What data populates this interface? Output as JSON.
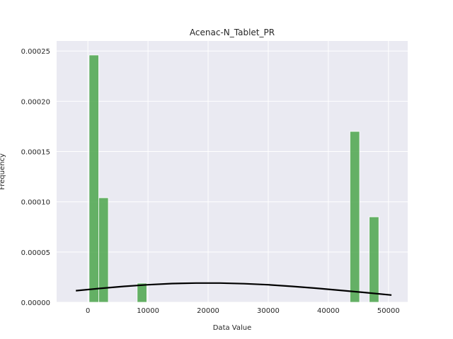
{
  "chart_data": {
    "type": "bar",
    "title": "Acenac-N_Tablet_PR",
    "xlabel": "Data Value",
    "ylabel": "Frequency",
    "xlim": [
      -5200,
      53200
    ],
    "ylim": [
      0,
      0.00026
    ],
    "grid": true,
    "x_ticks": [
      0,
      10000,
      20000,
      30000,
      40000,
      50000
    ],
    "y_ticks": [
      0.0,
      5e-05,
      0.0001,
      0.00015,
      0.0002,
      0.00025
    ],
    "y_tick_labels": [
      "0.00000",
      "0.00005",
      "0.00010",
      "0.00015",
      "0.00020",
      "0.00025"
    ],
    "histogram": {
      "color": "#4ca64c",
      "bins": [
        {
          "x0": 200,
          "x1": 1800,
          "density": 0.000246
        },
        {
          "x0": 1800,
          "x1": 3400,
          "density": 0.000104
        },
        {
          "x0": 8200,
          "x1": 9800,
          "density": 1.9e-05
        },
        {
          "x0": 43600,
          "x1": 45200,
          "density": 0.00017
        },
        {
          "x0": 46800,
          "x1": 48400,
          "density": 8.5e-05
        }
      ]
    },
    "density_curve": {
      "color": "#000000",
      "x": [
        -2000,
        2000,
        6000,
        10000,
        14000,
        18000,
        22000,
        26000,
        30000,
        34000,
        38000,
        42000,
        46000,
        50500
      ],
      "y": [
        1.15e-05,
        1.38e-05,
        1.58e-05,
        1.74e-05,
        1.86e-05,
        1.91e-05,
        1.91e-05,
        1.85e-05,
        1.74e-05,
        1.58e-05,
        1.4e-05,
        1.19e-05,
        9.8e-06,
        7.2e-06
      ]
    }
  }
}
